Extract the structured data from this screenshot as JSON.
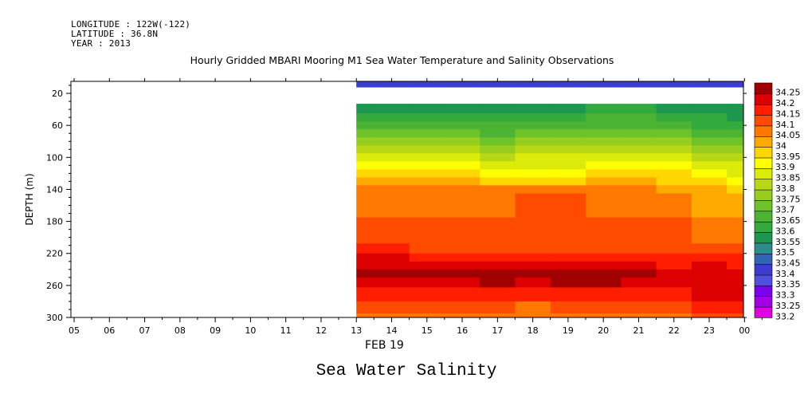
{
  "header": {
    "longitude": "LONGITUDE : 122W(-122)",
    "latitude": "LATITUDE : 36.8N",
    "year": "YEAR : 2013"
  },
  "title": "Hourly Gridded MBARI Mooring M1 Sea Water Temperature and Salinity Observations",
  "bottom_title": "Sea Water Salinity",
  "date_label": "FEB 19",
  "chart_data": {
    "type": "heatmap",
    "title": "Hourly Gridded MBARI Mooring M1 Sea Water Temperature and Salinity Observations",
    "xlabel": "FEB 19",
    "ylabel": "DEPTH (m)",
    "x_ticks": [
      "05",
      "06",
      "07",
      "08",
      "09",
      "10",
      "11",
      "12",
      "13",
      "14",
      "15",
      "16",
      "17",
      "18",
      "19",
      "20",
      "21",
      "22",
      "23",
      "00"
    ],
    "y_ticks": [
      20,
      60,
      100,
      140,
      180,
      220,
      260,
      300
    ],
    "ylim": [
      300,
      5
    ],
    "y_inverted": true,
    "colorbar": {
      "levels": [
        33.2,
        33.25,
        33.3,
        33.35,
        33.4,
        33.45,
        33.5,
        33.55,
        33.6,
        33.65,
        33.7,
        33.75,
        33.8,
        33.85,
        33.9,
        33.95,
        34,
        34.05,
        34.1,
        34.15,
        34.2,
        34.25
      ],
      "colors": [
        "#e000e0",
        "#a400e8",
        "#7c00f0",
        "#5050e0",
        "#3c3cd2",
        "#3264b4",
        "#2d8c8c",
        "#1e9650",
        "#32aa3c",
        "#4bb432",
        "#6ec328",
        "#96cd1e",
        "#b9d714",
        "#dcec0a",
        "#ffff00",
        "#ffd700",
        "#ffaa00",
        "#ff7800",
        "#ff4b00",
        "#ff1e00",
        "#dc0000",
        "#a00000"
      ]
    },
    "times": [
      "13",
      "14",
      "15",
      "16",
      "17",
      "18",
      "19",
      "20",
      "21",
      "22",
      "23",
      "00"
    ],
    "depths": [
      10,
      40,
      50,
      60,
      70,
      80,
      90,
      100,
      110,
      120,
      130,
      140,
      150,
      200,
      215,
      225,
      235,
      245,
      255,
      270,
      290,
      300
    ],
    "values": [
      [
        33.4,
        33.4,
        33.4,
        33.4,
        33.4,
        33.4,
        33.4,
        33.4,
        33.4,
        33.4,
        33.4,
        33.4
      ],
      [
        33.55,
        33.55,
        33.55,
        33.55,
        33.55,
        33.55,
        33.55,
        33.6,
        33.6,
        33.55,
        33.55,
        33.55
      ],
      [
        33.6,
        33.6,
        33.6,
        33.6,
        33.6,
        33.6,
        33.6,
        33.65,
        33.65,
        33.6,
        33.6,
        33.55
      ],
      [
        33.65,
        33.65,
        33.65,
        33.65,
        33.65,
        33.65,
        33.65,
        33.65,
        33.65,
        33.65,
        33.6,
        33.6
      ],
      [
        33.7,
        33.7,
        33.7,
        33.7,
        33.65,
        33.7,
        33.7,
        33.7,
        33.7,
        33.7,
        33.65,
        33.65
      ],
      [
        33.75,
        33.75,
        33.75,
        33.75,
        33.7,
        33.75,
        33.75,
        33.75,
        33.75,
        33.75,
        33.7,
        33.7
      ],
      [
        33.8,
        33.8,
        33.8,
        33.8,
        33.75,
        33.8,
        33.8,
        33.8,
        33.8,
        33.8,
        33.75,
        33.75
      ],
      [
        33.85,
        33.85,
        33.85,
        33.85,
        33.8,
        33.85,
        33.85,
        33.85,
        33.85,
        33.85,
        33.8,
        33.8
      ],
      [
        33.9,
        33.9,
        33.9,
        33.9,
        33.85,
        33.85,
        33.85,
        33.9,
        33.9,
        33.9,
        33.85,
        33.85
      ],
      [
        33.95,
        33.95,
        33.95,
        33.95,
        33.9,
        33.9,
        33.9,
        33.95,
        33.95,
        33.95,
        33.9,
        33.85
      ],
      [
        34,
        34,
        34,
        34,
        33.95,
        33.95,
        33.95,
        34,
        34,
        33.95,
        33.95,
        33.9
      ],
      [
        34.05,
        34.05,
        34.05,
        34.05,
        34.05,
        34.05,
        34.05,
        34.05,
        34.05,
        34,
        34,
        33.95
      ],
      [
        34.05,
        34.05,
        34.05,
        34.05,
        34.05,
        34.1,
        34.1,
        34.05,
        34.05,
        34.05,
        34,
        34
      ],
      [
        34.1,
        34.1,
        34.1,
        34.1,
        34.1,
        34.1,
        34.1,
        34.1,
        34.1,
        34.1,
        34.05,
        34.05
      ],
      [
        34.15,
        34.15,
        34.1,
        34.1,
        34.1,
        34.1,
        34.1,
        34.1,
        34.1,
        34.1,
        34.1,
        34.1
      ],
      [
        34.2,
        34.2,
        34.15,
        34.15,
        34.15,
        34.15,
        34.15,
        34.15,
        34.15,
        34.15,
        34.15,
        34.15
      ],
      [
        34.2,
        34.2,
        34.2,
        34.2,
        34.2,
        34.2,
        34.2,
        34.2,
        34.2,
        34.15,
        34.2,
        34.15
      ],
      [
        34.25,
        34.25,
        34.25,
        34.25,
        34.25,
        34.25,
        34.25,
        34.25,
        34.25,
        34.2,
        34.2,
        34.2
      ],
      [
        34.2,
        34.2,
        34.2,
        34.2,
        34.25,
        34.2,
        34.25,
        34.25,
        34.2,
        34.2,
        34.2,
        34.2
      ],
      [
        34.15,
        34.15,
        34.15,
        34.15,
        34.15,
        34.15,
        34.15,
        34.15,
        34.15,
        34.15,
        34.2,
        34.2
      ],
      [
        34.1,
        34.1,
        34.1,
        34.1,
        34.1,
        34.05,
        34.1,
        34.1,
        34.1,
        34.1,
        34.15,
        34.15
      ],
      [
        34.05,
        34.05,
        34.05,
        34.05,
        34.05,
        34.05,
        34.05,
        34.05,
        34.05,
        34.05,
        34.1,
        34.1
      ]
    ]
  }
}
